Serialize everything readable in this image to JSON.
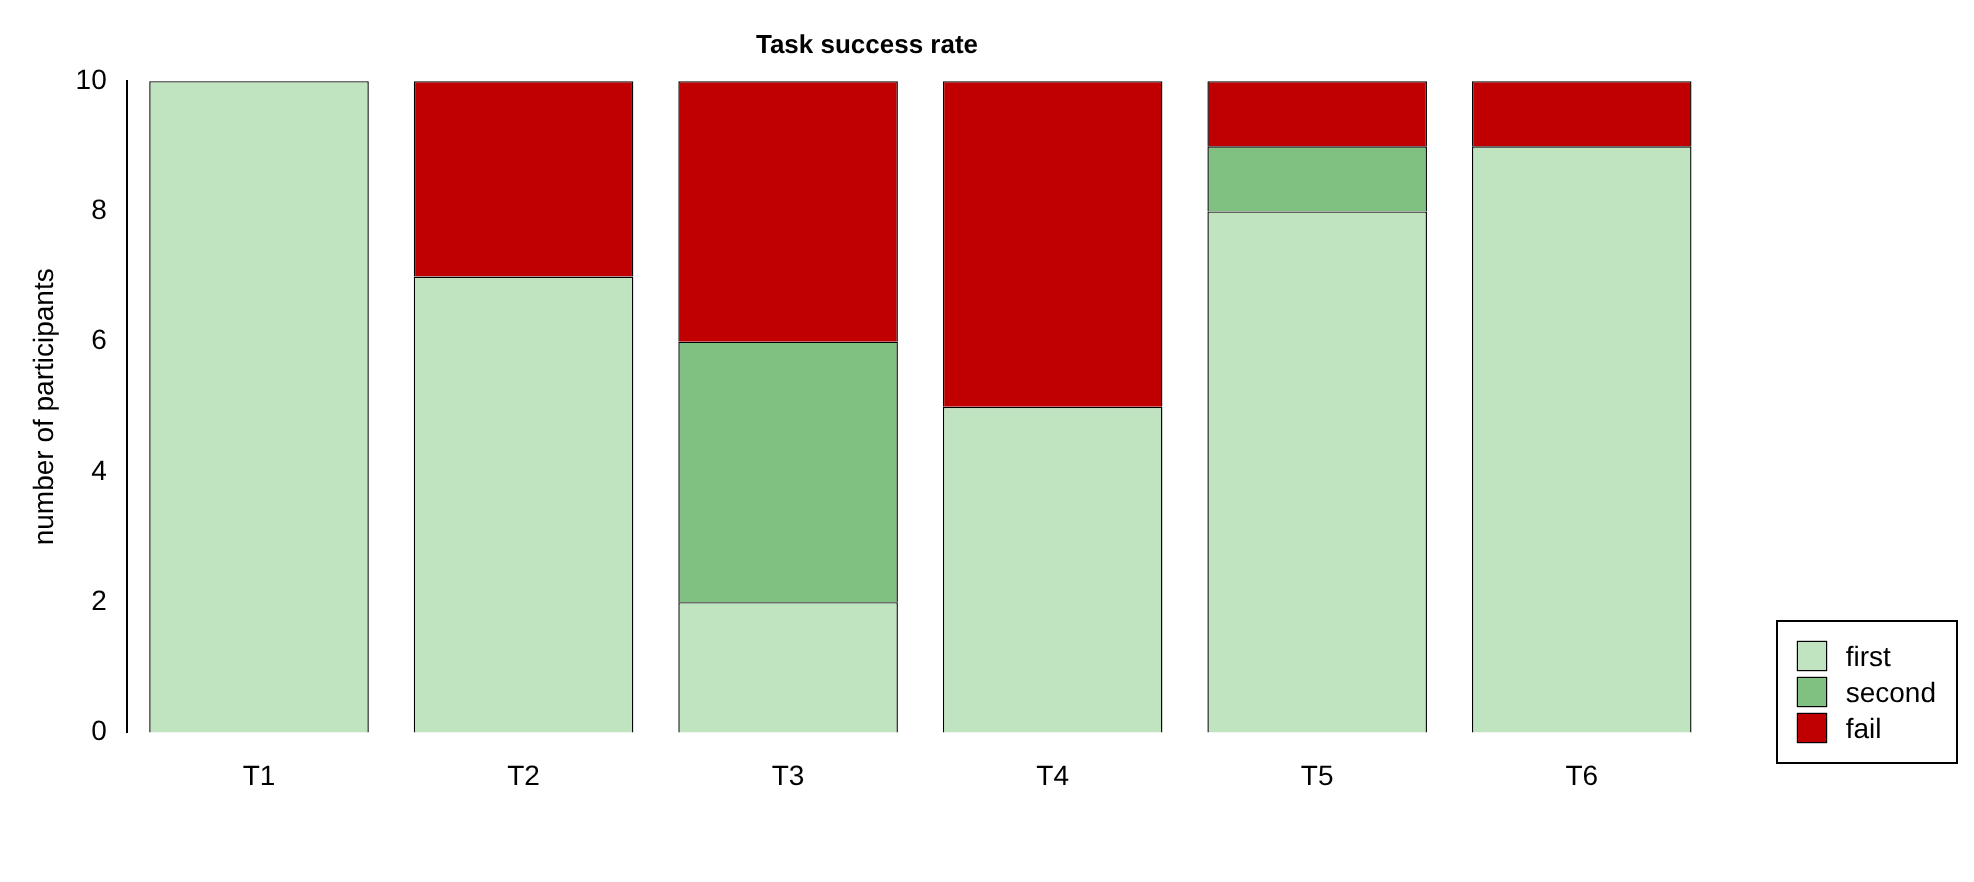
{
  "chart_data": {
    "type": "bar",
    "title": "Task success rate",
    "ylabel": "number of participants",
    "categories": [
      "T1",
      "T2",
      "T3",
      "T4",
      "T5",
      "T6"
    ],
    "stacked": true,
    "series": [
      {
        "name": "first",
        "color": "#c0e4bf",
        "values": [
          10,
          7,
          2,
          5,
          8,
          9
        ]
      },
      {
        "name": "second",
        "color": "#80c080",
        "values": [
          0,
          0,
          4,
          0,
          1,
          0
        ]
      },
      {
        "name": "fail",
        "color": "#c00000",
        "values": [
          0,
          3,
          4,
          5,
          1,
          1
        ]
      }
    ],
    "ylim": [
      0,
      10
    ],
    "yticks": [
      0,
      2,
      4,
      6,
      8,
      10
    ],
    "grid": false,
    "legend": "bottom right"
  }
}
